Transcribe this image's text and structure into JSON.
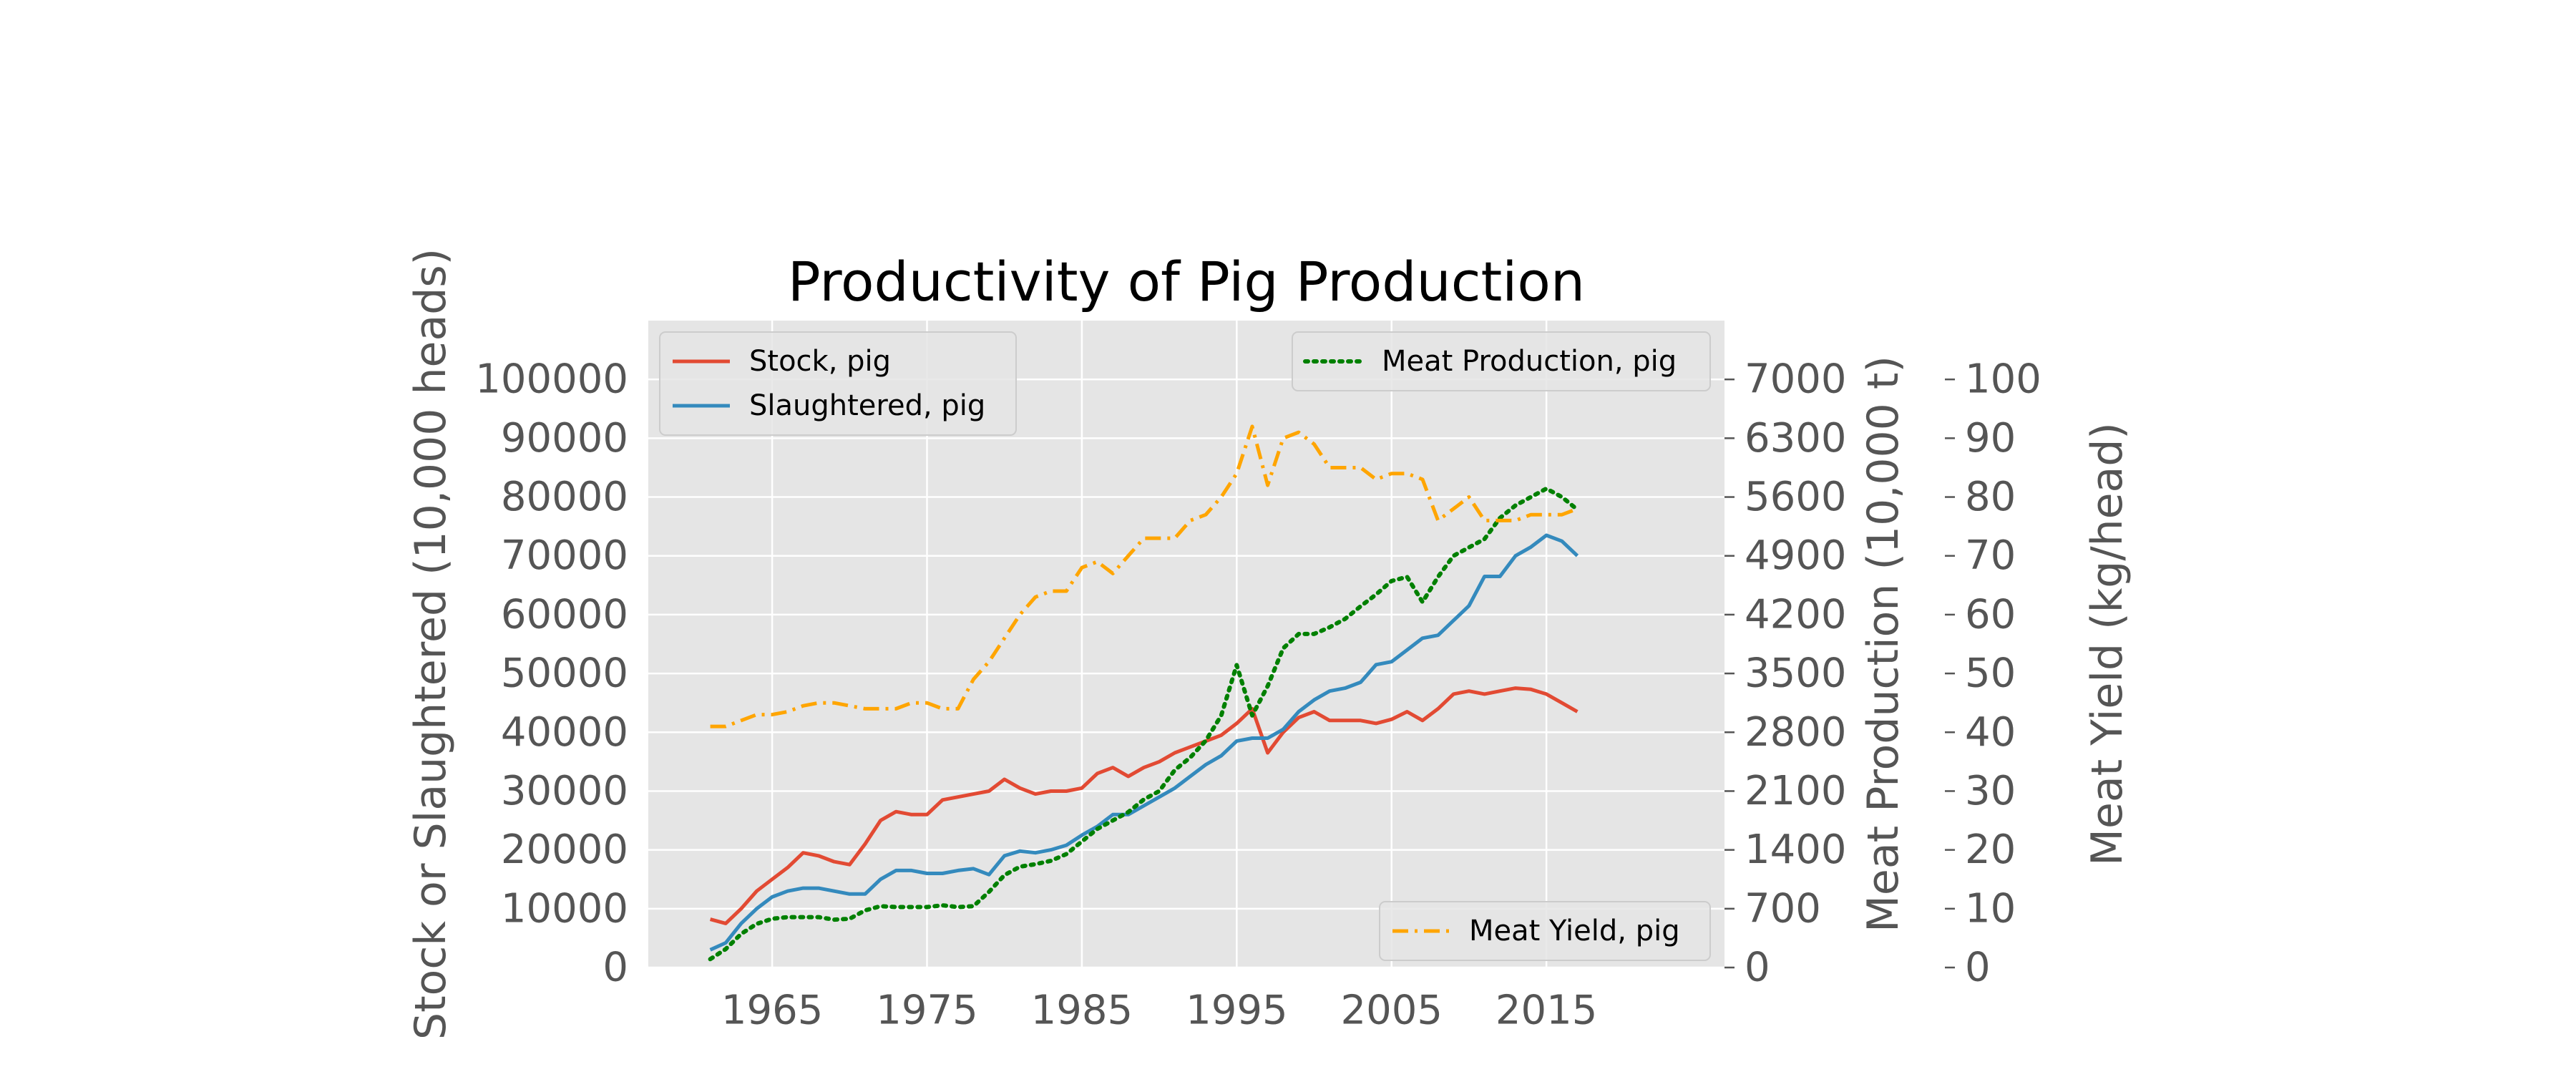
{
  "chart_data": {
    "type": "line",
    "title": "Productivity of Pig Production",
    "x_ticks": [
      "1965",
      "1975",
      "1985",
      "1995",
      "2005",
      "2015"
    ],
    "xlim": [
      1957.0,
      2026.5
    ],
    "axes": {
      "left": {
        "label": "Stock or Slaughtered (10,000 heads)",
        "ylim": [
          0,
          110000
        ],
        "ticks": [
          "0",
          "10000",
          "20000",
          "30000",
          "40000",
          "50000",
          "60000",
          "70000",
          "80000",
          "90000",
          "100000"
        ],
        "tick_values": [
          0,
          10000,
          20000,
          30000,
          40000,
          50000,
          60000,
          70000,
          80000,
          90000,
          100000
        ]
      },
      "right1": {
        "label": "Meat Production (10,000 t)",
        "ylim": [
          0,
          7700
        ],
        "ticks": [
          "0",
          "700",
          "1400",
          "2100",
          "2800",
          "3500",
          "4200",
          "4900",
          "5600",
          "6300",
          "7000"
        ],
        "tick_values": [
          0,
          700,
          1400,
          2100,
          2800,
          3500,
          4200,
          4900,
          5600,
          6300,
          7000
        ]
      },
      "right2": {
        "label": "Meat Yield (kg/head)",
        "ylim": [
          0,
          110
        ],
        "ticks": [
          "0",
          "10",
          "20",
          "30",
          "40",
          "50",
          "60",
          "70",
          "80",
          "90",
          "100"
        ],
        "tick_values": [
          0,
          10,
          20,
          30,
          40,
          50,
          60,
          70,
          80,
          90,
          100
        ]
      }
    },
    "x": [
      1961,
      1962,
      1963,
      1964,
      1965,
      1966,
      1967,
      1968,
      1969,
      1970,
      1971,
      1972,
      1973,
      1974,
      1975,
      1976,
      1977,
      1978,
      1979,
      1980,
      1981,
      1982,
      1983,
      1984,
      1985,
      1986,
      1987,
      1988,
      1989,
      1990,
      1991,
      1992,
      1993,
      1994,
      1995,
      1996,
      1997,
      1998,
      1999,
      2000,
      2001,
      2002,
      2003,
      2004,
      2005,
      2006,
      2007,
      2008,
      2009,
      2010,
      2011,
      2012,
      2013,
      2014,
      2015,
      2016,
      2017
    ],
    "series": [
      {
        "name": "Stock, pig",
        "axis": "left",
        "color": "#e24a33",
        "style": "solid",
        "values": [
          8200,
          7500,
          10000,
          13000,
          15000,
          17000,
          19500,
          19000,
          18000,
          17500,
          21000,
          25000,
          26500,
          26000,
          26000,
          28500,
          29000,
          29500,
          30000,
          32000,
          30500,
          29500,
          30000,
          30000,
          30500,
          33000,
          34000,
          32500,
          34000,
          35000,
          36500,
          37500,
          38500,
          39500,
          41500,
          44000,
          36500,
          40000,
          42500,
          43500,
          42000,
          42000,
          42000,
          41500,
          42200,
          43500,
          42000,
          44000,
          46500,
          47000,
          46500,
          47000,
          47500,
          47300,
          46500,
          45000,
          43500
        ]
      },
      {
        "name": "Slaughtered, pig",
        "axis": "left",
        "color": "#348abd",
        "style": "solid",
        "values": [
          3000,
          4200,
          7500,
          10000,
          12000,
          13000,
          13500,
          13500,
          13000,
          12500,
          12500,
          15000,
          16500,
          16500,
          16000,
          16000,
          16500,
          16800,
          15800,
          19000,
          19800,
          19500,
          20000,
          20800,
          22500,
          24000,
          26000,
          26000,
          27500,
          29000,
          30500,
          32500,
          34500,
          36000,
          38500,
          39000,
          39000,
          40500,
          43500,
          45500,
          47000,
          47500,
          48500,
          51500,
          52000,
          54000,
          56000,
          56500,
          59000,
          61500,
          66500,
          66500,
          70000,
          71500,
          73500,
          72500,
          70000
        ]
      },
      {
        "name": "Meat Production, pig",
        "axis": "right1",
        "color": "#008000",
        "style": "dotted",
        "values": [
          100,
          220,
          400,
          520,
          580,
          600,
          600,
          600,
          570,
          580,
          680,
          730,
          720,
          720,
          720,
          740,
          720,
          730,
          900,
          1100,
          1200,
          1230,
          1270,
          1350,
          1500,
          1650,
          1750,
          1850,
          2000,
          2100,
          2350,
          2500,
          2700,
          3000,
          3600,
          3000,
          3350,
          3800,
          3970,
          3970,
          4050,
          4150,
          4300,
          4440,
          4600,
          4650,
          4350,
          4650,
          4900,
          5000,
          5100,
          5350,
          5500,
          5600,
          5700,
          5600,
          5450
        ]
      },
      {
        "name": "Meat Yield, pig",
        "axis": "right2",
        "color": "#ffa500",
        "style": "dashdot",
        "values": [
          41,
          41,
          42,
          43,
          43,
          43.5,
          44.5,
          45,
          45,
          44.5,
          44,
          44,
          44,
          45,
          45,
          44,
          44,
          49,
          52,
          56,
          60,
          63,
          64,
          64,
          68,
          69,
          67,
          70,
          73,
          73,
          73,
          76,
          77,
          80,
          84,
          92,
          82,
          90,
          91,
          89,
          85,
          85,
          85,
          83,
          84,
          84,
          83,
          76,
          78,
          80,
          76,
          76,
          76,
          77,
          77,
          77,
          78
        ]
      }
    ],
    "legend": [
      {
        "entries": [
          "Stock, pig",
          "Slaughtered, pig"
        ],
        "placement": "upper-left"
      },
      {
        "entries": [
          "Meat Production, pig"
        ],
        "placement": "upper-right"
      },
      {
        "entries": [
          "Meat Yield, pig"
        ],
        "placement": "lower-right"
      }
    ],
    "grid": true,
    "plot_background": "#e5e5e5",
    "grid_color": "#ffffff"
  }
}
